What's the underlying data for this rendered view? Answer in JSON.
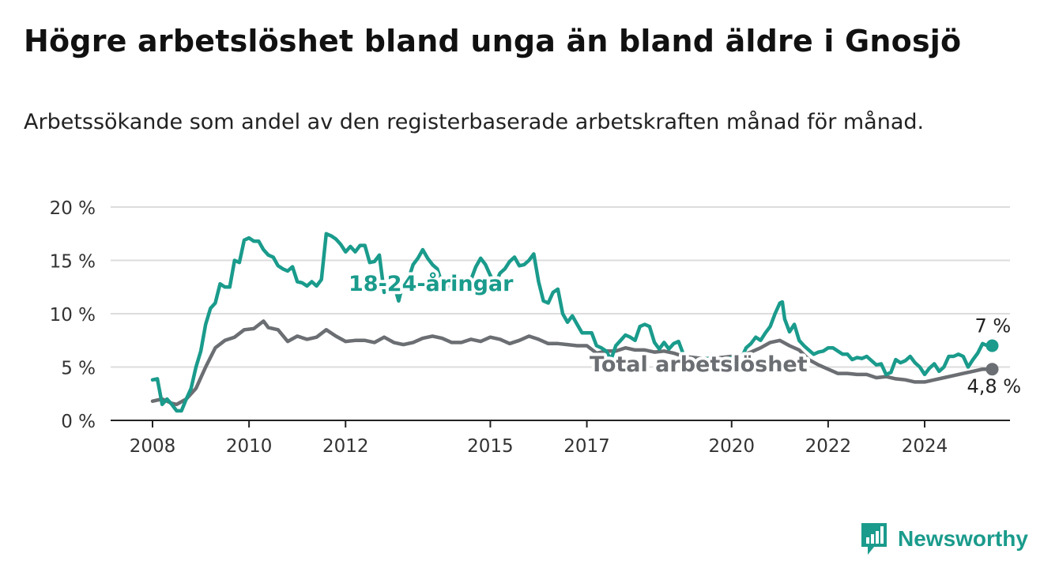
{
  "header": {
    "title": "Högre arbetslöshet bland unga än bland äldre i Gnosjö",
    "subtitle": "Arbetssökande som andel av den registerbaserade arbetskraften månad för månad."
  },
  "brand": {
    "name": "Newsworthy",
    "color": "#1a9b8c",
    "icon": "newsworthy-logo-icon"
  },
  "chart_data": {
    "type": "line",
    "title": "",
    "xlabel": "",
    "ylabel": "",
    "xlim": [
      2007.4,
      2025.0
    ],
    "ylim": [
      0,
      20
    ],
    "y_ticks": [
      0,
      5,
      10,
      15,
      20
    ],
    "y_tick_labels": [
      "0 %",
      "5 %",
      "10 %",
      "15 %",
      "20 %"
    ],
    "x_ticks": [
      2008,
      2010,
      2012,
      2015,
      2017,
      2020,
      2022,
      2024
    ],
    "x_tick_labels": [
      "2008",
      "2010",
      "2012",
      "2015",
      "2017",
      "2020",
      "2022",
      "2024"
    ],
    "grid": "horizontal",
    "legend": "direct-labels",
    "series": [
      {
        "name": "18-24-åringar",
        "color": "#1a9b8c",
        "end_label": "7 %",
        "points": [
          [
            2008.0,
            3.8
          ],
          [
            2008.1,
            3.9
          ],
          [
            2008.2,
            1.5
          ],
          [
            2008.3,
            2.0
          ],
          [
            2008.4,
            1.5
          ],
          [
            2008.5,
            0.9
          ],
          [
            2008.6,
            0.9
          ],
          [
            2008.7,
            2.0
          ],
          [
            2008.8,
            3.0
          ],
          [
            2008.9,
            5.0
          ],
          [
            2009.0,
            6.5
          ],
          [
            2009.1,
            9.0
          ],
          [
            2009.2,
            10.5
          ],
          [
            2009.3,
            11.0
          ],
          [
            2009.4,
            12.8
          ],
          [
            2009.5,
            12.5
          ],
          [
            2009.6,
            12.5
          ],
          [
            2009.7,
            15.0
          ],
          [
            2009.8,
            14.8
          ],
          [
            2009.9,
            16.9
          ],
          [
            2010.0,
            17.1
          ],
          [
            2010.1,
            16.8
          ],
          [
            2010.2,
            16.8
          ],
          [
            2010.3,
            16.0
          ],
          [
            2010.4,
            15.5
          ],
          [
            2010.5,
            15.3
          ],
          [
            2010.6,
            14.5
          ],
          [
            2010.7,
            14.2
          ],
          [
            2010.8,
            14.0
          ],
          [
            2010.9,
            14.4
          ],
          [
            2011.0,
            13.0
          ],
          [
            2011.1,
            12.9
          ],
          [
            2011.2,
            12.6
          ],
          [
            2011.3,
            13.0
          ],
          [
            2011.4,
            12.6
          ],
          [
            2011.5,
            13.2
          ],
          [
            2011.6,
            17.5
          ],
          [
            2011.7,
            17.3
          ],
          [
            2011.8,
            17.0
          ],
          [
            2011.9,
            16.5
          ],
          [
            2012.0,
            15.8
          ],
          [
            2012.1,
            16.3
          ],
          [
            2012.2,
            15.8
          ],
          [
            2012.3,
            16.4
          ],
          [
            2012.4,
            16.4
          ],
          [
            2012.5,
            14.8
          ],
          [
            2012.6,
            14.9
          ],
          [
            2012.7,
            15.5
          ],
          [
            2012.8,
            12.0
          ],
          [
            2012.9,
            12.5
          ],
          [
            2013.0,
            12.8
          ],
          [
            2013.1,
            11.2
          ],
          [
            2013.2,
            13.0
          ],
          [
            2013.3,
            13.2
          ],
          [
            2013.4,
            14.6
          ],
          [
            2013.5,
            15.2
          ],
          [
            2013.6,
            16.0
          ],
          [
            2013.7,
            15.2
          ],
          [
            2013.8,
            14.6
          ],
          [
            2013.9,
            14.2
          ],
          [
            2014.0,
            12.8
          ],
          [
            2014.1,
            12.4
          ],
          [
            2014.2,
            13.5
          ],
          [
            2014.3,
            13.0
          ],
          [
            2014.4,
            12.8
          ],
          [
            2014.5,
            13.0
          ],
          [
            2014.6,
            13.2
          ],
          [
            2014.7,
            14.4
          ],
          [
            2014.8,
            15.2
          ],
          [
            2014.9,
            14.6
          ],
          [
            2015.0,
            13.6
          ],
          [
            2015.1,
            12.8
          ],
          [
            2015.2,
            13.8
          ],
          [
            2015.3,
            14.2
          ],
          [
            2015.4,
            14.9
          ],
          [
            2015.5,
            15.3
          ],
          [
            2015.6,
            14.5
          ],
          [
            2015.7,
            14.6
          ],
          [
            2015.8,
            15.0
          ],
          [
            2015.9,
            15.6
          ],
          [
            2016.0,
            13.0
          ],
          [
            2016.1,
            11.2
          ],
          [
            2016.2,
            11.0
          ],
          [
            2016.3,
            12.0
          ],
          [
            2016.4,
            12.3
          ],
          [
            2016.5,
            10.0
          ],
          [
            2016.6,
            9.2
          ],
          [
            2016.7,
            9.8
          ],
          [
            2016.8,
            9.0
          ],
          [
            2016.9,
            8.2
          ],
          [
            2017.0,
            8.2
          ],
          [
            2017.1,
            8.2
          ],
          [
            2017.2,
            7.0
          ],
          [
            2017.3,
            6.8
          ],
          [
            2017.4,
            6.5
          ],
          [
            2017.5,
            5.7
          ],
          [
            2017.6,
            7.0
          ],
          [
            2017.7,
            7.5
          ],
          [
            2017.8,
            8.0
          ],
          [
            2017.9,
            7.8
          ],
          [
            2018.0,
            7.5
          ],
          [
            2018.1,
            8.8
          ],
          [
            2018.2,
            9.0
          ],
          [
            2018.3,
            8.8
          ],
          [
            2018.4,
            7.3
          ],
          [
            2018.5,
            6.7
          ],
          [
            2018.6,
            7.3
          ],
          [
            2018.7,
            6.7
          ],
          [
            2018.8,
            7.2
          ],
          [
            2018.9,
            7.4
          ],
          [
            2019.0,
            6.2
          ],
          [
            2019.1,
            5.5
          ],
          [
            2019.2,
            5.7
          ],
          [
            2019.3,
            5.4
          ],
          [
            2019.4,
            5.6
          ],
          [
            2019.5,
            5.8
          ],
          [
            2019.6,
            5.5
          ],
          [
            2019.7,
            5.8
          ],
          [
            2019.8,
            5.6
          ],
          [
            2019.9,
            5.7
          ],
          [
            2020.0,
            5.9
          ],
          [
            2020.1,
            6.0
          ],
          [
            2020.2,
            5.8
          ],
          [
            2020.3,
            6.8
          ],
          [
            2020.4,
            7.2
          ],
          [
            2020.5,
            7.8
          ],
          [
            2020.6,
            7.5
          ],
          [
            2020.7,
            8.2
          ],
          [
            2020.8,
            8.8
          ],
          [
            2020.9,
            10.0
          ],
          [
            2021.0,
            11.0
          ],
          [
            2021.05,
            11.1
          ],
          [
            2021.1,
            9.5
          ],
          [
            2021.2,
            8.3
          ],
          [
            2021.3,
            9.0
          ],
          [
            2021.4,
            7.5
          ],
          [
            2021.5,
            7.0
          ],
          [
            2021.6,
            6.6
          ],
          [
            2021.7,
            6.2
          ],
          [
            2021.8,
            6.4
          ],
          [
            2021.9,
            6.5
          ],
          [
            2022.0,
            6.8
          ],
          [
            2022.1,
            6.8
          ],
          [
            2022.2,
            6.5
          ],
          [
            2022.3,
            6.2
          ],
          [
            2022.4,
            6.2
          ],
          [
            2022.5,
            5.7
          ],
          [
            2022.6,
            5.9
          ],
          [
            2022.7,
            5.8
          ],
          [
            2022.8,
            6.0
          ],
          [
            2022.9,
            5.6
          ],
          [
            2023.0,
            5.2
          ],
          [
            2023.1,
            5.3
          ],
          [
            2023.2,
            4.3
          ],
          [
            2023.3,
            4.5
          ],
          [
            2023.4,
            5.7
          ],
          [
            2023.5,
            5.4
          ],
          [
            2023.6,
            5.6
          ],
          [
            2023.7,
            6.0
          ],
          [
            2023.8,
            5.4
          ],
          [
            2023.9,
            5.0
          ],
          [
            2024.0,
            4.3
          ],
          [
            2024.1,
            4.9
          ],
          [
            2024.2,
            5.3
          ],
          [
            2024.3,
            4.6
          ],
          [
            2024.4,
            5.0
          ],
          [
            2024.5,
            6.0
          ],
          [
            2024.6,
            6.0
          ],
          [
            2024.7,
            6.2
          ],
          [
            2024.8,
            6.0
          ],
          [
            2024.9,
            5.0
          ],
          [
            2025.0,
            5.7
          ],
          [
            2025.1,
            6.3
          ],
          [
            2025.2,
            7.2
          ],
          [
            2025.3,
            7.0
          ],
          [
            2025.4,
            7.0
          ]
        ]
      },
      {
        "name": "Total arbetslöshet",
        "color": "#6b6e72",
        "end_label": "4,8 %",
        "points": [
          [
            2008.0,
            1.8
          ],
          [
            2008.2,
            2.0
          ],
          [
            2008.4,
            1.6
          ],
          [
            2008.5,
            1.5
          ],
          [
            2008.7,
            2.0
          ],
          [
            2008.9,
            3.0
          ],
          [
            2009.1,
            5.0
          ],
          [
            2009.3,
            6.8
          ],
          [
            2009.5,
            7.5
          ],
          [
            2009.7,
            7.8
          ],
          [
            2009.9,
            8.5
          ],
          [
            2010.1,
            8.6
          ],
          [
            2010.3,
            9.3
          ],
          [
            2010.4,
            8.7
          ],
          [
            2010.6,
            8.5
          ],
          [
            2010.8,
            7.4
          ],
          [
            2011.0,
            7.9
          ],
          [
            2011.2,
            7.6
          ],
          [
            2011.4,
            7.8
          ],
          [
            2011.6,
            8.5
          ],
          [
            2011.8,
            7.9
          ],
          [
            2012.0,
            7.4
          ],
          [
            2012.2,
            7.5
          ],
          [
            2012.4,
            7.5
          ],
          [
            2012.6,
            7.3
          ],
          [
            2012.8,
            7.8
          ],
          [
            2013.0,
            7.3
          ],
          [
            2013.2,
            7.1
          ],
          [
            2013.4,
            7.3
          ],
          [
            2013.6,
            7.7
          ],
          [
            2013.8,
            7.9
          ],
          [
            2014.0,
            7.7
          ],
          [
            2014.2,
            7.3
          ],
          [
            2014.4,
            7.3
          ],
          [
            2014.6,
            7.6
          ],
          [
            2014.8,
            7.4
          ],
          [
            2015.0,
            7.8
          ],
          [
            2015.2,
            7.6
          ],
          [
            2015.4,
            7.2
          ],
          [
            2015.6,
            7.5
          ],
          [
            2015.8,
            7.9
          ],
          [
            2016.0,
            7.6
          ],
          [
            2016.2,
            7.2
          ],
          [
            2016.4,
            7.2
          ],
          [
            2016.6,
            7.1
          ],
          [
            2016.8,
            7.0
          ],
          [
            2017.0,
            7.0
          ],
          [
            2017.2,
            6.3
          ],
          [
            2017.4,
            6.5
          ],
          [
            2017.6,
            6.5
          ],
          [
            2017.8,
            6.8
          ],
          [
            2018.0,
            6.6
          ],
          [
            2018.2,
            6.6
          ],
          [
            2018.4,
            6.4
          ],
          [
            2018.6,
            6.5
          ],
          [
            2018.8,
            6.3
          ],
          [
            2019.0,
            6.0
          ],
          [
            2019.2,
            5.9
          ],
          [
            2019.4,
            5.8
          ],
          [
            2019.6,
            5.8
          ],
          [
            2019.8,
            5.9
          ],
          [
            2020.0,
            6.0
          ],
          [
            2020.2,
            6.1
          ],
          [
            2020.4,
            6.4
          ],
          [
            2020.6,
            6.8
          ],
          [
            2020.8,
            7.3
          ],
          [
            2021.0,
            7.5
          ],
          [
            2021.2,
            7.0
          ],
          [
            2021.4,
            6.6
          ],
          [
            2021.6,
            5.7
          ],
          [
            2021.8,
            5.2
          ],
          [
            2022.0,
            4.8
          ],
          [
            2022.2,
            4.4
          ],
          [
            2022.4,
            4.4
          ],
          [
            2022.6,
            4.3
          ],
          [
            2022.8,
            4.3
          ],
          [
            2023.0,
            4.0
          ],
          [
            2023.2,
            4.1
          ],
          [
            2023.4,
            3.9
          ],
          [
            2023.6,
            3.8
          ],
          [
            2023.8,
            3.6
          ],
          [
            2024.0,
            3.6
          ],
          [
            2024.2,
            3.8
          ],
          [
            2024.4,
            4.0
          ],
          [
            2024.6,
            4.2
          ],
          [
            2024.8,
            4.4
          ],
          [
            2025.0,
            4.6
          ],
          [
            2025.2,
            4.8
          ],
          [
            2025.4,
            4.8
          ]
        ]
      }
    ]
  }
}
